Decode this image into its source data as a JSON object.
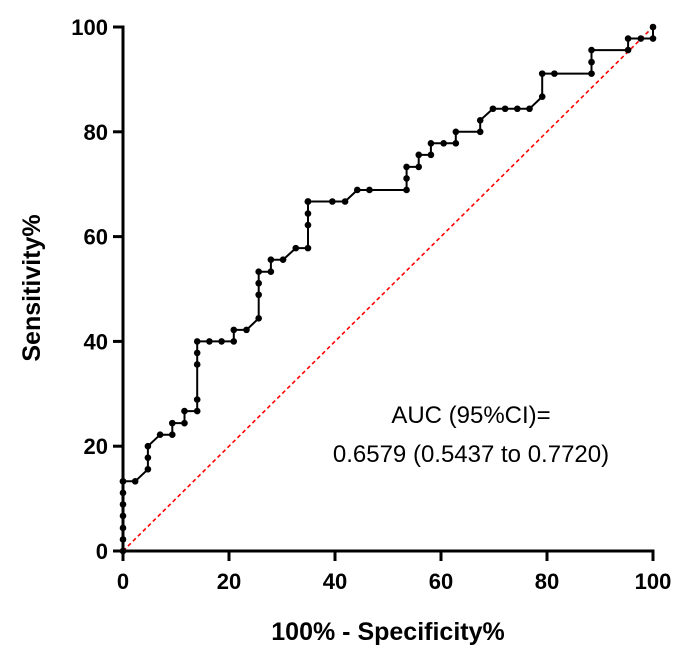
{
  "chart_data": {
    "type": "line",
    "title": "",
    "xlabel": "100% - Specificity%",
    "ylabel": "Sensitivity%",
    "xlim": [
      0,
      100
    ],
    "ylim": [
      0,
      100
    ],
    "xticks": [
      "0",
      "20",
      "40",
      "60",
      "80",
      "100"
    ],
    "yticks": [
      "0",
      "20",
      "40",
      "60",
      "80",
      "100"
    ],
    "annotation_lines": [
      "AUC (95%CI)=",
      "0.6579 (0.5437 to 0.7720)"
    ],
    "series": [
      {
        "line_color": "#000000",
        "x": [
          0,
          0,
          0,
          0,
          0,
          0,
          0,
          0,
          2.3,
          4.7,
          4.7,
          4.7,
          7.0,
          9.3,
          9.3,
          11.6,
          11.6,
          14.0,
          14.0,
          14.0,
          14.0,
          14.0,
          16.3,
          18.6,
          20.9,
          20.9,
          23.3,
          25.6,
          25.6,
          25.6,
          25.6,
          27.9,
          27.9,
          30.2,
          32.6,
          34.9,
          34.9,
          34.9,
          34.9,
          34.9,
          34.9,
          39.5,
          41.9,
          44.2,
          46.5,
          53.5,
          53.5,
          53.5,
          55.8,
          55.8,
          58.1,
          58.1,
          60.5,
          62.8,
          62.8,
          67.4,
          67.4,
          69.8,
          72.1,
          74.4,
          76.7,
          79.1,
          79.1,
          81.4,
          88.4,
          88.4,
          88.4,
          95.3,
          95.3,
          97.7,
          100,
          100
        ],
        "y": [
          0,
          2.2,
          4.4,
          6.7,
          8.9,
          11.1,
          13.3,
          13.3,
          13.3,
          15.6,
          17.8,
          20.0,
          22.2,
          22.2,
          24.4,
          24.4,
          26.7,
          26.7,
          28.9,
          35.6,
          37.8,
          40.0,
          40.0,
          40.0,
          40.0,
          42.2,
          42.2,
          44.4,
          48.9,
          51.1,
          53.3,
          53.3,
          55.6,
          55.6,
          57.8,
          57.8,
          62.2,
          64.4,
          66.7,
          66.7,
          66.7,
          66.7,
          66.7,
          68.9,
          68.9,
          68.9,
          71.1,
          73.3,
          73.3,
          75.6,
          75.6,
          77.8,
          77.8,
          77.8,
          80.0,
          80.0,
          82.2,
          84.4,
          84.4,
          84.4,
          84.4,
          86.7,
          91.1,
          91.1,
          91.1,
          93.3,
          95.6,
          95.6,
          97.8,
          97.8,
          97.8,
          100
        ]
      },
      {
        "line_color": "#ff0000",
        "style": "dashed",
        "x": [
          0,
          100
        ],
        "y": [
          0,
          100
        ]
      }
    ]
  }
}
